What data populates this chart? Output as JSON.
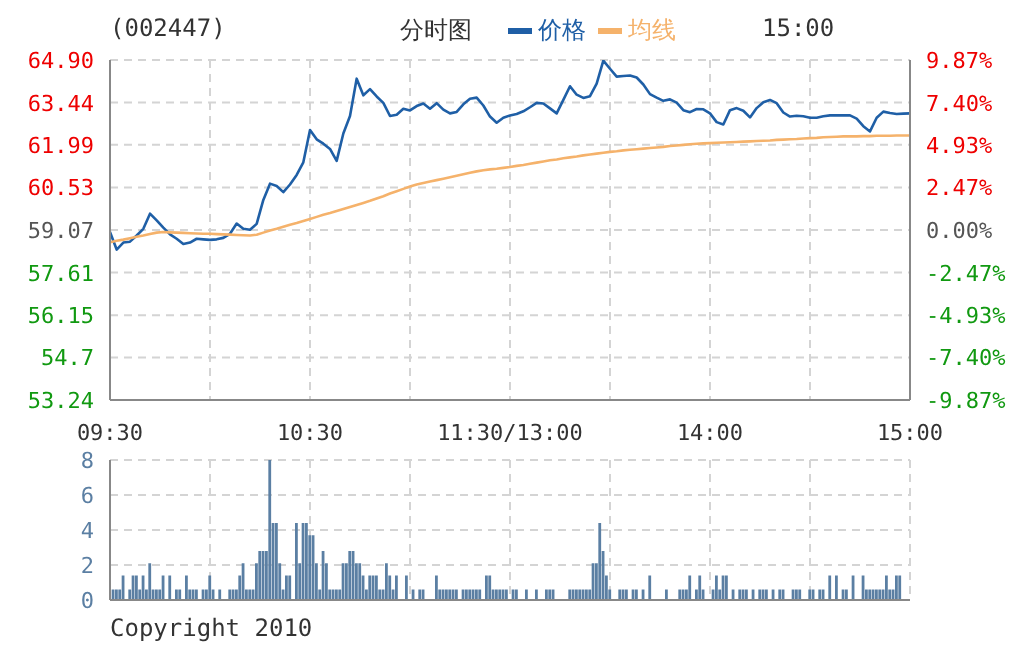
{
  "chart_data": [
    {
      "type": "line",
      "title": "分时图",
      "subtitle": "(002447)",
      "annotations": [
        "15:00"
      ],
      "legend": "top",
      "grid": true,
      "categories": [
        "09:30",
        null,
        null,
        null,
        null,
        null,
        null,
        null,
        null,
        null,
        null,
        null,
        null,
        null,
        null,
        null,
        null,
        null,
        null,
        null,
        null,
        null,
        null,
        null,
        null,
        null,
        null,
        null,
        null,
        null,
        "10:30",
        null,
        null,
        null,
        null,
        null,
        null,
        null,
        null,
        null,
        null,
        null,
        null,
        null,
        null,
        null,
        null,
        null,
        null,
        null,
        null,
        null,
        null,
        null,
        null,
        null,
        null,
        null,
        null,
        null,
        "11:30/13:00",
        null,
        null,
        null,
        null,
        null,
        null,
        null,
        null,
        null,
        null,
        null,
        null,
        null,
        null,
        null,
        null,
        null,
        null,
        null,
        null,
        null,
        null,
        null,
        null,
        null,
        null,
        null,
        null,
        null,
        "14:00",
        null,
        null,
        null,
        null,
        null,
        null,
        null,
        null,
        null,
        null,
        null,
        null,
        null,
        null,
        null,
        null,
        null,
        null,
        null,
        null,
        null,
        null,
        null,
        null,
        null,
        null,
        null,
        null,
        null,
        "15:00"
      ],
      "ylim": [
        53.24,
        64.9
      ],
      "yticks": [
        {
          "value": 53.24,
          "label": "53.24"
        },
        54.7,
        56.15,
        57.61,
        59.07,
        60.53,
        61.99,
        63.44,
        {
          "value": 64.9,
          "label": "64.90"
        }
      ],
      "y2lim": [
        -9.87,
        9.87
      ],
      "y2ticks": [
        {
          "value": -9.87,
          "label": "-9.87%"
        },
        {
          "value": -7.4,
          "label": "-7.40%"
        },
        {
          "value": -4.93,
          "label": "-4.93%"
        },
        {
          "value": -2.47,
          "label": "-2.47%"
        },
        {
          "value": 0,
          "label": "0.00%"
        },
        {
          "value": 2.47,
          "label": "2.47%"
        },
        {
          "value": 4.93,
          "label": "4.93%"
        },
        {
          "value": 7.4,
          "label": "7.40%"
        },
        {
          "value": 9.87,
          "label": "9.87%"
        }
      ],
      "series": [
        {
          "name": "价格",
          "color": "#1f5fa6",
          "values": [
            59.0,
            58.4,
            58.64,
            58.67,
            58.88,
            59.11,
            59.63,
            59.4,
            59.15,
            58.92,
            58.77,
            58.59,
            58.64,
            58.77,
            58.75,
            58.73,
            58.75,
            58.8,
            58.94,
            59.29,
            59.11,
            59.08,
            59.28,
            60.1,
            60.66,
            60.58,
            60.37,
            60.63,
            60.96,
            61.39,
            62.5,
            62.18,
            62.03,
            61.85,
            61.44,
            62.38,
            62.98,
            64.26,
            63.69,
            63.9,
            63.65,
            63.43,
            62.98,
            63.02,
            63.23,
            63.17,
            63.32,
            63.41,
            63.23,
            63.42,
            63.2,
            63.07,
            63.12,
            63.38,
            63.57,
            63.61,
            63.34,
            62.96,
            62.75,
            62.92,
            63.0,
            63.05,
            63.14,
            63.28,
            63.43,
            63.41,
            63.24,
            63.07,
            63.53,
            64.0,
            63.71,
            63.6,
            63.66,
            64.09,
            64.88,
            64.6,
            64.33,
            64.35,
            64.37,
            64.3,
            64.06,
            63.73,
            63.61,
            63.5,
            63.55,
            63.44,
            63.18,
            63.11,
            63.22,
            63.21,
            63.07,
            62.77,
            62.69,
            63.18,
            63.25,
            63.16,
            62.93,
            63.25,
            63.45,
            63.53,
            63.42,
            63.1,
            62.96,
            62.99,
            62.97,
            62.92,
            62.92,
            62.97,
            63.0,
            63.0,
            63.0,
            63.0,
            62.89,
            62.63,
            62.45,
            62.92,
            63.13,
            63.08,
            63.05,
            63.06,
            63.07
          ]
        },
        {
          "name": "均线",
          "color": "#f5b26b",
          "values": [
            58.65,
            58.7,
            58.74,
            58.79,
            58.84,
            58.88,
            58.93,
            58.98,
            59.0,
            58.99,
            58.98,
            58.97,
            58.96,
            58.95,
            58.94,
            58.94,
            58.93,
            58.92,
            58.91,
            58.9,
            58.89,
            58.88,
            58.91,
            58.98,
            59.05,
            59.11,
            59.18,
            59.25,
            59.31,
            59.38,
            59.45,
            59.52,
            59.59,
            59.65,
            59.72,
            59.79,
            59.86,
            59.93,
            60.0,
            60.07,
            60.15,
            60.23,
            60.32,
            60.4,
            60.48,
            60.56,
            60.63,
            60.68,
            60.73,
            60.78,
            60.83,
            60.88,
            60.93,
            60.98,
            61.03,
            61.08,
            61.12,
            61.15,
            61.17,
            61.2,
            61.23,
            61.27,
            61.3,
            61.34,
            61.38,
            61.42,
            61.46,
            61.49,
            61.53,
            61.56,
            61.59,
            61.63,
            61.66,
            61.69,
            61.72,
            61.75,
            61.77,
            61.8,
            61.82,
            61.84,
            61.86,
            61.88,
            61.9,
            61.92,
            61.95,
            61.97,
            61.99,
            62.01,
            62.03,
            62.04,
            62.05,
            62.06,
            62.07,
            62.08,
            62.09,
            62.1,
            62.11,
            62.12,
            62.13,
            62.14,
            62.16,
            62.17,
            62.18,
            62.19,
            62.21,
            62.22,
            62.23,
            62.25,
            62.26,
            62.27,
            62.28,
            62.28,
            62.28,
            62.29,
            62.29,
            62.3,
            62.3,
            62.3,
            62.31,
            62.31,
            62.31
          ]
        }
      ]
    },
    {
      "type": "bar",
      "color": "#5b7fa3",
      "grid": true,
      "annotations": [
        "Copyright 2010"
      ],
      "categories": [
        null,
        null,
        null,
        null,
        null,
        null,
        null,
        null,
        null,
        null,
        null,
        null,
        null,
        null,
        null,
        null,
        null,
        null,
        null,
        null,
        null,
        null,
        null,
        null,
        null,
        null,
        null,
        null,
        null,
        null,
        null,
        null,
        null,
        null,
        null,
        null,
        null,
        null,
        null,
        null,
        null,
        null,
        null,
        null,
        null,
        null,
        null,
        null,
        null,
        null,
        null,
        null,
        null,
        null,
        null,
        null,
        null,
        null,
        null,
        null,
        null,
        null,
        null,
        null,
        null,
        null,
        null,
        null,
        null,
        null,
        null,
        null,
        null,
        null,
        null,
        null,
        null,
        null,
        null,
        null,
        null,
        null,
        null,
        null,
        null,
        null,
        null,
        null,
        null,
        null,
        null,
        null,
        null,
        null,
        null,
        null,
        null,
        null,
        null,
        null,
        null,
        null,
        null,
        null,
        null,
        null,
        null,
        null,
        null,
        null,
        null,
        null,
        null,
        null,
        null,
        null,
        null,
        null,
        null,
        null,
        null,
        null,
        null,
        null,
        null,
        null,
        null,
        null,
        null,
        null,
        null,
        null,
        null,
        null,
        null,
        null,
        null,
        null,
        null,
        null,
        null,
        null,
        null,
        null,
        null,
        null,
        null,
        null,
        null,
        null,
        null,
        null,
        null,
        null,
        null,
        null,
        null,
        null,
        null,
        null,
        null,
        null,
        null,
        null,
        null,
        null,
        null,
        null,
        null,
        null,
        null,
        null,
        null,
        null,
        null,
        null,
        null,
        null,
        null,
        null,
        null,
        null,
        null,
        null,
        null,
        null,
        null,
        null,
        null,
        null,
        null,
        null,
        null,
        null,
        null,
        null,
        null,
        null,
        null,
        null,
        null,
        null,
        null,
        null,
        null,
        null,
        null,
        null,
        null,
        null,
        null,
        null,
        null,
        null,
        null,
        null,
        null,
        null,
        null,
        null,
        null,
        null,
        null,
        null,
        null,
        null,
        null,
        null,
        null,
        null,
        null,
        null,
        null,
        null,
        null,
        null,
        null,
        null,
        null,
        null,
        null
      ],
      "ylim": [
        0,
        8
      ],
      "yticks": [
        0,
        2,
        4,
        6,
        8
      ],
      "values": [
        0,
        0.6,
        0.6,
        0.6,
        1.4,
        0,
        0.6,
        1.4,
        1.4,
        0.6,
        1.4,
        0.6,
        2.1,
        0.6,
        0.6,
        0.6,
        1.4,
        0,
        1.4,
        0,
        0.6,
        0.6,
        0,
        1.4,
        0.6,
        0.6,
        0.6,
        0,
        0.6,
        0.6,
        1.4,
        0.6,
        0,
        0.6,
        0,
        0,
        0.6,
        0.6,
        0.6,
        1.4,
        2.1,
        0.6,
        0.6,
        0.6,
        2.1,
        2.8,
        2.8,
        2.8,
        8,
        4.4,
        4.4,
        2.1,
        0.6,
        1.4,
        1.4,
        0,
        4.4,
        2.1,
        4.4,
        4.4,
        3.7,
        3.7,
        2.1,
        0.6,
        2.8,
        2.1,
        0.6,
        0.6,
        0.6,
        0.6,
        2.1,
        2.1,
        2.8,
        2.8,
        2.1,
        2.1,
        1.4,
        0.6,
        1.4,
        1.4,
        1.4,
        0.6,
        0.6,
        2.1,
        1.4,
        0.6,
        1.4,
        0,
        0,
        1.4,
        0,
        0.6,
        0,
        0.6,
        0.6,
        0,
        0,
        0,
        1.4,
        0.6,
        0.6,
        0.6,
        0.6,
        0.6,
        0.6,
        0,
        0.6,
        0.6,
        0.6,
        0.6,
        0.6,
        0.6,
        0,
        1.4,
        1.4,
        0.6,
        0.6,
        0.6,
        0.6,
        0.6,
        0,
        0.6,
        0.6,
        0,
        0,
        0.6,
        0,
        0,
        0.6,
        0,
        0,
        0.6,
        0.6,
        0.6,
        0,
        0,
        0,
        0,
        0.6,
        0.6,
        0.6,
        0.6,
        0.6,
        0.6,
        0.6,
        2.1,
        2.1,
        4.4,
        2.8,
        1.4,
        0.6,
        0,
        0,
        0.6,
        0.6,
        0.6,
        0,
        0.6,
        0.6,
        0,
        0.6,
        0,
        1.4,
        0,
        0,
        0,
        0,
        0.6,
        0,
        0,
        0,
        0.6,
        0.6,
        0.6,
        1.4,
        0,
        0.6,
        1.4,
        0.6,
        0,
        0,
        0.6,
        1.4,
        0.6,
        1.4,
        1.4,
        0,
        0.6,
        0,
        0.6,
        0.6,
        0.6,
        0,
        0.6,
        0,
        0.6,
        0.6,
        0.6,
        0,
        0.6,
        0,
        0.6,
        0.6,
        0,
        0,
        0.6,
        0.6,
        0.6,
        0,
        0,
        0.6,
        0.6,
        0,
        0.6,
        0.6,
        0,
        1.4,
        0,
        1.4,
        0,
        0.6,
        0.6,
        0,
        1.4,
        0,
        0,
        1.4,
        0.6,
        0.6,
        0.6,
        0.6,
        0.6,
        0.6,
        1.4,
        0.6,
        0.6,
        1.4,
        1.4,
        0,
        0,
        0
      ]
    }
  ]
}
